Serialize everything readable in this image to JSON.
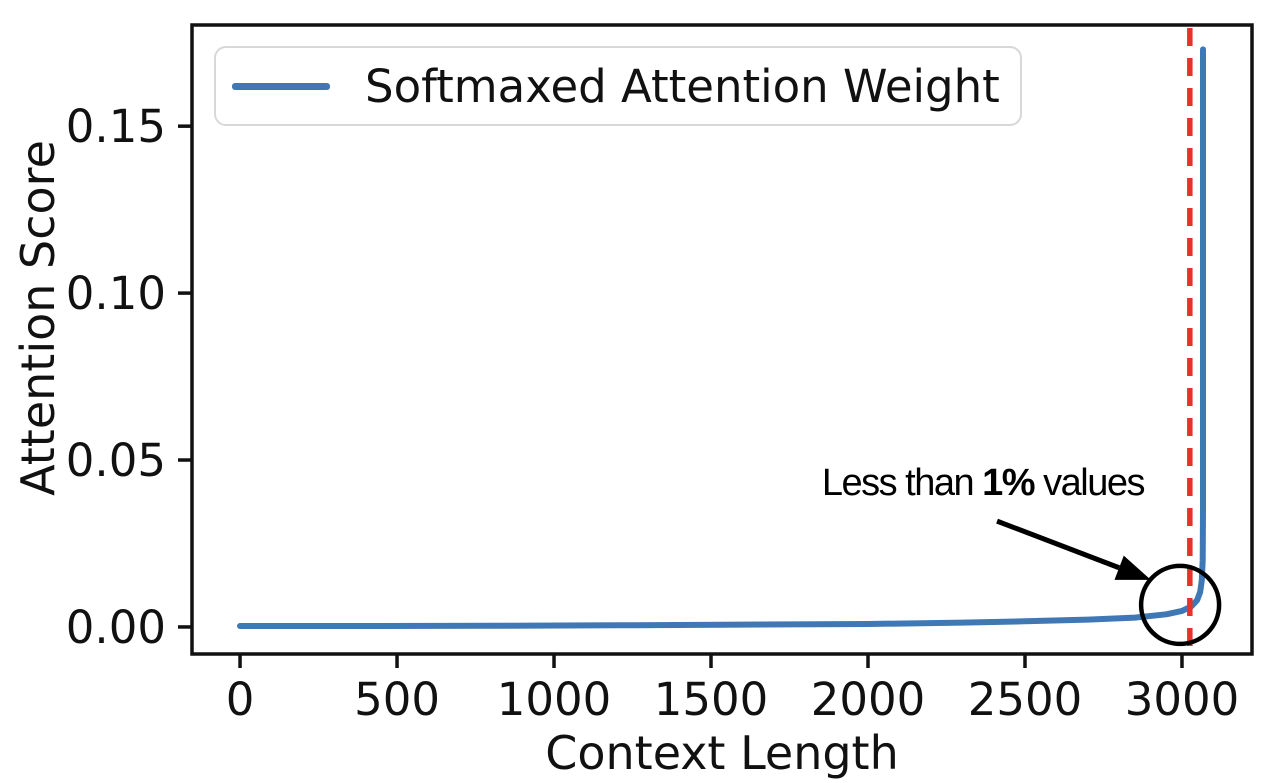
{
  "chart_data": {
    "type": "line",
    "title": "",
    "xlabel": "Context Length",
    "ylabel": "Attention Score",
    "xlim": [
      -153,
      3223
    ],
    "ylim": [
      -0.0081,
      0.1803
    ],
    "grid": false,
    "x_ticks": {
      "values": [
        0,
        500,
        1000,
        1500,
        2000,
        2500,
        3000
      ],
      "labels": [
        "0",
        "500",
        "1000",
        "1500",
        "2000",
        "2500",
        "3000"
      ]
    },
    "y_ticks": {
      "values": [
        0.0,
        0.05,
        0.1,
        0.15
      ],
      "labels": [
        "0.00",
        "0.05",
        "0.10",
        "0.15"
      ]
    },
    "legend": {
      "label": "Softmaxed Attention Weight",
      "position": "upper left"
    },
    "series": [
      {
        "name": "Softmaxed Attention Weight",
        "color": "#3f78b4",
        "line_width": 6,
        "points": [
          [
            0,
            0.0003
          ],
          [
            400,
            0.0003
          ],
          [
            800,
            0.00035
          ],
          [
            1200,
            0.0005
          ],
          [
            1600,
            0.0007
          ],
          [
            2000,
            0.0009
          ],
          [
            2300,
            0.0013
          ],
          [
            2500,
            0.0017
          ],
          [
            2700,
            0.0022
          ],
          [
            2850,
            0.0028
          ],
          [
            2950,
            0.0038
          ],
          [
            3000,
            0.0048
          ],
          [
            3030,
            0.0062
          ],
          [
            3048,
            0.008
          ],
          [
            3058,
            0.0105
          ],
          [
            3063,
            0.014
          ],
          [
            3066,
            0.02
          ],
          [
            3067,
            0.035
          ],
          [
            3067,
            0.173
          ]
        ]
      }
    ],
    "vline": {
      "x": 3025,
      "color": "#e63329",
      "style": "dashed",
      "width": 5.5
    },
    "annotation": {
      "text_prefix": "Less than ",
      "text_bold": "1%",
      "text_suffix": " values",
      "text_center": [
        2366,
        0.0431
      ],
      "arrow_from": [
        2411,
        0.0317
      ],
      "arrow_to": [
        2901,
        0.0141
      ],
      "arrow_color": "#000000",
      "circle_center": [
        2994,
        0.0066
      ],
      "circle_radius_px": 39,
      "circle_color": "#000000"
    },
    "frame_color": "#111111"
  }
}
